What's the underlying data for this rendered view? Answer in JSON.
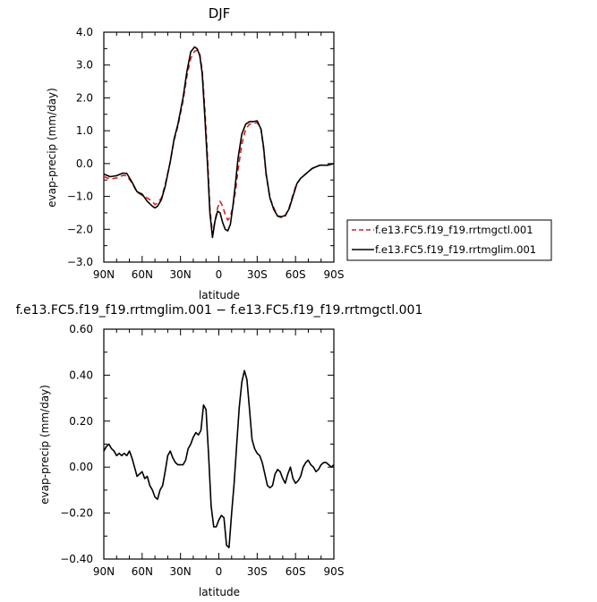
{
  "chart_data": [
    {
      "type": "line",
      "title": "DJF",
      "xlabel": "latitude",
      "ylabel": "evap-precip  (mm/day)",
      "xlim": [
        90,
        -90
      ],
      "ylim": [
        -3.0,
        4.0
      ],
      "xticks": [
        90,
        60,
        30,
        0,
        -30,
        -60,
        -90
      ],
      "xtick_labels": [
        "90N",
        "60N",
        "30N",
        "0",
        "30S",
        "60S",
        "90S"
      ],
      "yticks": [
        4.0,
        3.0,
        2.0,
        1.0,
        0.0,
        -1.0,
        -2.0,
        -3.0
      ],
      "ytick_labels": [
        "4.0",
        "3.0",
        "2.0",
        "1.0",
        "0.0",
        "−1.0",
        "−2.0",
        "−3.0"
      ],
      "legend_position": "right",
      "series": [
        {
          "name": "f.e13.FC5.f19_f19.rrtmgctl.001",
          "color": "#d62020",
          "dash": "dashed",
          "x": [
            90,
            85,
            80,
            75,
            72,
            68,
            64,
            60,
            56,
            52,
            50,
            48,
            45,
            42,
            38,
            35,
            32,
            28,
            25,
            22,
            19,
            17,
            15,
            13,
            11,
            9,
            7,
            5,
            3,
            1,
            -1,
            -3,
            -5,
            -7,
            -9,
            -11,
            -13,
            -15,
            -18,
            -21,
            -24,
            -27,
            -30,
            -33,
            -35,
            -37,
            -40,
            -43,
            -46,
            -49,
            -52,
            -55,
            -58,
            -61,
            -64,
            -67,
            -70,
            -73,
            -76,
            -79,
            -82,
            -85,
            -88,
            -90
          ],
          "y": [
            -0.4,
            -0.47,
            -0.44,
            -0.36,
            -0.37,
            -0.59,
            -0.87,
            -0.97,
            -1.05,
            -1.15,
            -1.25,
            -1.2,
            -1.05,
            -0.65,
            0.05,
            0.7,
            1.15,
            1.9,
            2.65,
            3.2,
            3.42,
            3.45,
            3.35,
            2.85,
            1.7,
            0.3,
            -1.35,
            -2.15,
            -1.75,
            -1.35,
            -1.15,
            -1.3,
            -1.55,
            -1.72,
            -1.62,
            -1.3,
            -0.85,
            -0.2,
            0.6,
            1.05,
            1.2,
            1.22,
            1.25,
            1.05,
            0.45,
            -0.35,
            -1.05,
            -1.35,
            -1.6,
            -1.65,
            -1.6,
            -1.35,
            -0.95,
            -0.6,
            -0.45,
            -0.35,
            -0.25,
            -0.15,
            -0.1,
            -0.05,
            -0.05,
            -0.05,
            -0.02,
            0.0
          ]
        },
        {
          "name": "f.e13.FC5.f19_f19.rrtmglim.001",
          "color": "#000000",
          "dash": "solid",
          "x": [
            90,
            85,
            80,
            75,
            72,
            68,
            64,
            60,
            56,
            52,
            50,
            48,
            45,
            42,
            38,
            35,
            32,
            28,
            25,
            22,
            19,
            17,
            15,
            13,
            11,
            9,
            7,
            5,
            3,
            1,
            -1,
            -3,
            -5,
            -7,
            -9,
            -11,
            -13,
            -15,
            -18,
            -21,
            -24,
            -27,
            -30,
            -33,
            -35,
            -37,
            -40,
            -43,
            -46,
            -49,
            -52,
            -55,
            -58,
            -61,
            -64,
            -67,
            -70,
            -73,
            -76,
            -79,
            -82,
            -85,
            -88,
            -90
          ],
          "y": [
            -0.32,
            -0.4,
            -0.37,
            -0.29,
            -0.3,
            -0.56,
            -0.86,
            -0.93,
            -1.15,
            -1.3,
            -1.35,
            -1.3,
            -1.1,
            -0.7,
            0.05,
            0.75,
            1.2,
            2.0,
            2.8,
            3.4,
            3.55,
            3.5,
            3.3,
            2.75,
            1.45,
            0.05,
            -1.5,
            -2.25,
            -1.75,
            -1.45,
            -1.5,
            -1.8,
            -2.0,
            -2.05,
            -1.85,
            -1.3,
            -0.6,
            0.15,
            0.9,
            1.2,
            1.28,
            1.28,
            1.3,
            1.05,
            0.5,
            -0.3,
            -1.05,
            -1.4,
            -1.6,
            -1.62,
            -1.58,
            -1.38,
            -1.0,
            -0.62,
            -0.45,
            -0.35,
            -0.25,
            -0.15,
            -0.1,
            -0.05,
            -0.05,
            -0.05,
            -0.02,
            0.0
          ]
        }
      ]
    },
    {
      "type": "line",
      "title": "f.e13.FC5.f19_f19.rrtmglim.001 − f.e13.FC5.f19_f19.rrtmgctl.001",
      "xlabel": "latitude",
      "ylabel": "evap-precip  (mm/day)",
      "xlim": [
        90,
        -90
      ],
      "ylim": [
        -0.4,
        0.6
      ],
      "xticks": [
        90,
        60,
        30,
        0,
        -30,
        -60,
        -90
      ],
      "xtick_labels": [
        "90N",
        "60N",
        "30N",
        "0",
        "30S",
        "60S",
        "90S"
      ],
      "yticks": [
        0.6,
        0.4,
        0.2,
        0.0,
        -0.2,
        -0.4
      ],
      "ytick_labels": [
        "0.60",
        "0.40",
        "0.20",
        "0.00",
        "−0.20",
        "−0.40"
      ],
      "series": [
        {
          "color": "#000000",
          "dash": "solid",
          "x": [
            90,
            88,
            86,
            84,
            82,
            80,
            78,
            76,
            74,
            72,
            70,
            68,
            66,
            64,
            62,
            60,
            58,
            56,
            54,
            52,
            50,
            48,
            46,
            44,
            42,
            40,
            38,
            36,
            34,
            32,
            30,
            28,
            26,
            24,
            22,
            20,
            18,
            16,
            14,
            12,
            10,
            8,
            6,
            4,
            2,
            0,
            -2,
            -4,
            -6,
            -8,
            -10,
            -12,
            -14,
            -16,
            -18,
            -20,
            -22,
            -24,
            -26,
            -28,
            -30,
            -32,
            -34,
            -36,
            -38,
            -40,
            -42,
            -44,
            -46,
            -48,
            -50,
            -52,
            -54,
            -56,
            -58,
            -60,
            -62,
            -64,
            -66,
            -68,
            -70,
            -72,
            -74,
            -76,
            -78,
            -80,
            -82,
            -84,
            -86,
            -88,
            -90
          ],
          "y": [
            0.07,
            0.09,
            0.1,
            0.08,
            0.07,
            0.05,
            0.06,
            0.05,
            0.06,
            0.05,
            0.07,
            0.04,
            0.0,
            -0.04,
            -0.03,
            -0.02,
            -0.05,
            -0.04,
            -0.08,
            -0.1,
            -0.13,
            -0.14,
            -0.1,
            -0.08,
            -0.02,
            0.05,
            0.07,
            0.04,
            0.02,
            0.01,
            0.01,
            0.01,
            0.03,
            0.08,
            0.1,
            0.13,
            0.15,
            0.14,
            0.16,
            0.27,
            0.25,
            0.05,
            -0.17,
            -0.26,
            -0.26,
            -0.23,
            -0.21,
            -0.22,
            -0.34,
            -0.35,
            -0.2,
            -0.07,
            0.1,
            0.26,
            0.37,
            0.42,
            0.38,
            0.25,
            0.12,
            0.08,
            0.06,
            0.05,
            0.02,
            -0.03,
            -0.08,
            -0.09,
            -0.08,
            -0.03,
            -0.01,
            -0.02,
            -0.05,
            -0.07,
            -0.03,
            0.0,
            -0.05,
            -0.07,
            -0.06,
            -0.04,
            0.0,
            0.02,
            0.03,
            0.01,
            0.0,
            -0.02,
            -0.01,
            0.01,
            0.02,
            0.02,
            0.01,
            0.0,
            0.01
          ]
        }
      ]
    }
  ]
}
